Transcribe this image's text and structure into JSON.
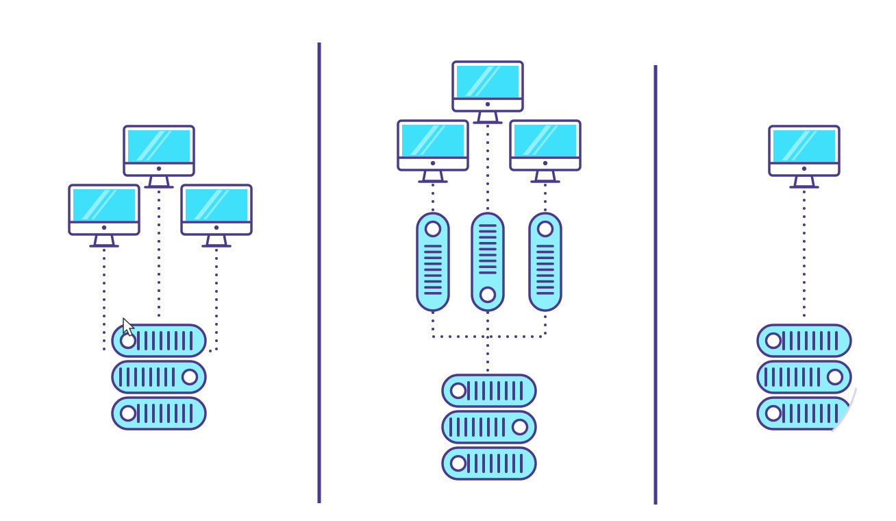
{
  "colors": {
    "outline": "#4a3a8c",
    "screen": "#3fe0fa",
    "screen_shine": "#a8f3ff",
    "server_fill": "#8ff0fb",
    "background": "#ffffff",
    "divider": "#4a3a8c"
  },
  "panels": [
    {
      "id": "architecture-left",
      "monitors": 3,
      "relay_servers": 0,
      "server_stack_units": 3
    },
    {
      "id": "architecture-middle",
      "monitors": 3,
      "relay_servers": 3,
      "server_stack_units": 3
    },
    {
      "id": "architecture-right",
      "monitors": 1,
      "relay_servers": 0,
      "server_stack_units": 3
    }
  ],
  "icons": [
    "monitor-icon",
    "server-rack-icon",
    "vertical-server-icon",
    "mouse-cursor-icon"
  ]
}
